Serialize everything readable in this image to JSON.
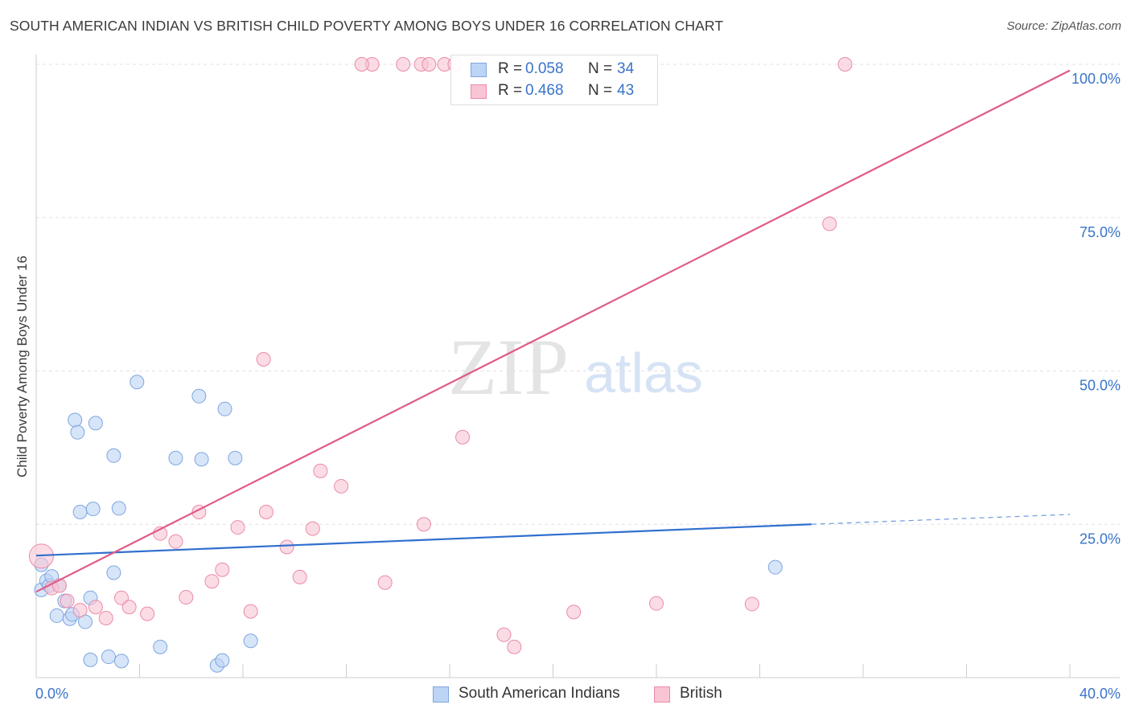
{
  "header": {
    "title": "SOUTH AMERICAN INDIAN VS BRITISH CHILD POVERTY AMONG BOYS UNDER 16 CORRELATION CHART",
    "source": "Source: ZipAtlas.com"
  },
  "watermark": {
    "zip": "ZIP",
    "atlas": "atlas"
  },
  "legend": {
    "r_label": "R =",
    "n_label": "N =",
    "rows": [
      {
        "r": "0.058",
        "n": "34"
      },
      {
        "r": "0.468",
        "n": "43"
      }
    ]
  },
  "colors": {
    "blue_fill": "#bcd4f5",
    "blue_stroke": "#7ea6e0",
    "blue_line": "#2f6fce",
    "pink_fill": "#f9c4d4",
    "pink_stroke": "#eb8aa8",
    "pink_line": "#e05b88",
    "tick_text": "#3a74c9",
    "grid": "#e2e2e2"
  },
  "chart_data": {
    "type": "scatter",
    "title": "SOUTH AMERICAN INDIAN VS BRITISH CHILD POVERTY AMONG BOYS UNDER 16 CORRELATION CHART",
    "xlabel": "",
    "ylabel": "Child Poverty Among Boys Under 16",
    "xlim": [
      0,
      40
    ],
    "ylim": [
      0,
      100
    ],
    "x_tick_labels": [
      "0.0%",
      "40.0%"
    ],
    "y_ticks": [
      25,
      50,
      75,
      100
    ],
    "y_tick_labels": [
      "25.0%",
      "50.0%",
      "75.0%",
      "100.0%"
    ],
    "grid": true,
    "legend_position": "bottom",
    "series": [
      {
        "name": "South American Indians",
        "color": "#7ea6e0",
        "r": 0.058,
        "n": 34,
        "trend": {
          "x": [
            0,
            30
          ],
          "y": [
            19.9,
            25.0
          ]
        },
        "trend_dashed": {
          "x": [
            30,
            40
          ],
          "y": [
            25.0,
            26.6
          ]
        },
        "points": [
          [
            0.2,
            14.3
          ],
          [
            0.4,
            15.8
          ],
          [
            0.5,
            15.0
          ],
          [
            0.6,
            16.5
          ],
          [
            0.8,
            10.1
          ],
          [
            0.9,
            15.0
          ],
          [
            1.1,
            12.5
          ],
          [
            1.3,
            9.6
          ],
          [
            1.4,
            10.3
          ],
          [
            1.5,
            42.0
          ],
          [
            1.6,
            40.0
          ],
          [
            1.7,
            27.0
          ],
          [
            1.9,
            9.1
          ],
          [
            2.1,
            13.0
          ],
          [
            2.2,
            27.5
          ],
          [
            2.3,
            41.5
          ],
          [
            2.1,
            2.9
          ],
          [
            2.8,
            3.4
          ],
          [
            3.0,
            36.2
          ],
          [
            3.0,
            17.1
          ],
          [
            3.2,
            27.6
          ],
          [
            3.3,
            2.7
          ],
          [
            3.9,
            48.2
          ],
          [
            4.8,
            5.0
          ],
          [
            5.4,
            35.8
          ],
          [
            6.3,
            45.9
          ],
          [
            6.4,
            35.6
          ],
          [
            7.0,
            2.0
          ],
          [
            7.2,
            2.8
          ],
          [
            7.3,
            43.8
          ],
          [
            7.7,
            35.8
          ],
          [
            8.3,
            6.0
          ],
          [
            28.6,
            18.0
          ],
          [
            0.2,
            18.4
          ]
        ]
      },
      {
        "name": "British",
        "color": "#eb8aa8",
        "r": 0.468,
        "n": 43,
        "trend": {
          "x": [
            0,
            40
          ],
          "y": [
            14.0,
            99.0
          ]
        },
        "points": [
          [
            0.2,
            19.8
          ],
          [
            0.6,
            14.6
          ],
          [
            0.9,
            15.0
          ],
          [
            1.2,
            12.5
          ],
          [
            1.7,
            11.0
          ],
          [
            2.3,
            11.5
          ],
          [
            2.7,
            9.7
          ],
          [
            3.3,
            13.0
          ],
          [
            3.6,
            11.5
          ],
          [
            4.3,
            10.4
          ],
          [
            4.8,
            23.5
          ],
          [
            5.4,
            22.2
          ],
          [
            5.8,
            13.1
          ],
          [
            6.3,
            27.0
          ],
          [
            6.8,
            15.7
          ],
          [
            7.2,
            17.6
          ],
          [
            7.8,
            24.5
          ],
          [
            8.3,
            10.8
          ],
          [
            8.9,
            27.0
          ],
          [
            8.8,
            51.9
          ],
          [
            9.7,
            21.3
          ],
          [
            10.2,
            16.4
          ],
          [
            10.7,
            24.3
          ],
          [
            11.0,
            33.7
          ],
          [
            11.8,
            31.2
          ],
          [
            13.0,
            100.0
          ],
          [
            12.6,
            100.0
          ],
          [
            13.5,
            15.5
          ],
          [
            14.2,
            100.0
          ],
          [
            14.9,
            100.0
          ],
          [
            15.0,
            25.0
          ],
          [
            15.2,
            100.0
          ],
          [
            15.8,
            100.0
          ],
          [
            16.2,
            100.0
          ],
          [
            16.5,
            39.2
          ],
          [
            17.0,
            100.0
          ],
          [
            18.1,
            7.0
          ],
          [
            18.5,
            5.0
          ],
          [
            20.8,
            10.7
          ],
          [
            24.0,
            12.1
          ],
          [
            27.7,
            12.0
          ],
          [
            30.7,
            74.0
          ],
          [
            31.3,
            100.0
          ]
        ]
      }
    ]
  }
}
